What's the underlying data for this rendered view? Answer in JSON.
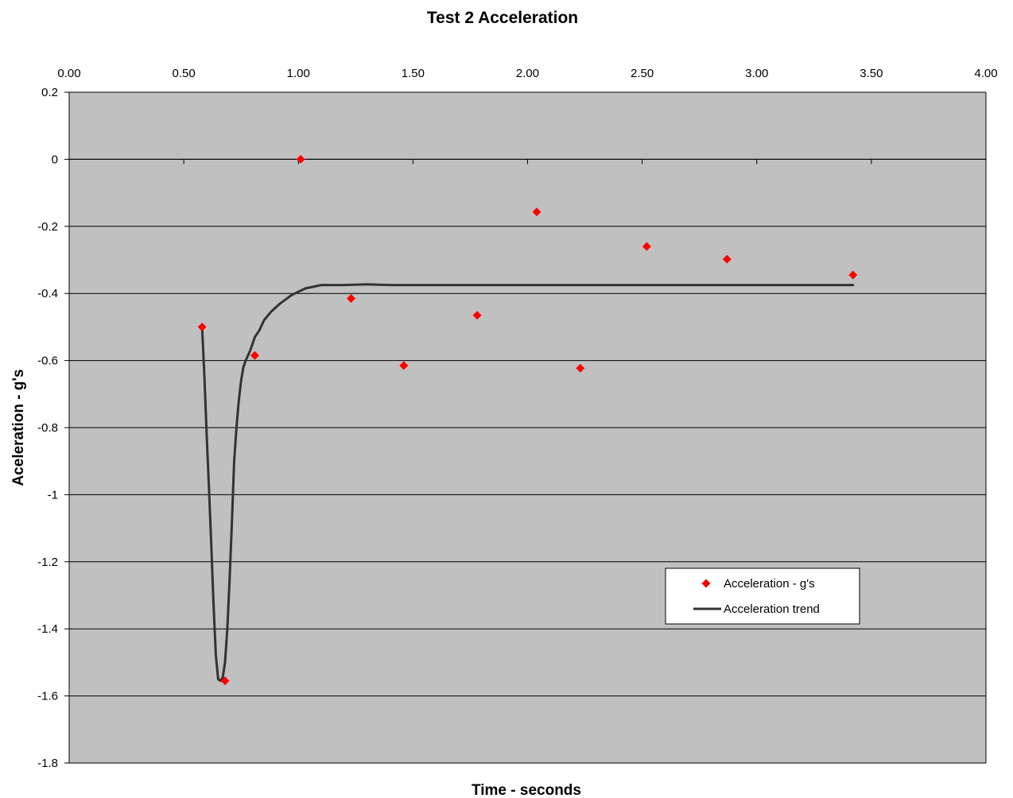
{
  "chart_data": {
    "type": "scatter",
    "title": "Test 2 Acceleration",
    "xlabel": "Time - seconds",
    "ylabel": "Aceleration - g's",
    "xlim": [
      0,
      4
    ],
    "ylim": [
      -1.8,
      0.2
    ],
    "x_ticks": [
      "0.00",
      "0.50",
      "1.00",
      "1.50",
      "2.00",
      "2.50",
      "3.00",
      "3.50",
      "4.00"
    ],
    "y_ticks": [
      "0.2",
      "0",
      "-0.2",
      "-0.4",
      "-0.6",
      "-0.8",
      "-1",
      "-1.2",
      "-1.4",
      "-1.6",
      "-1.8"
    ],
    "x_axis_position": "top",
    "grid": "horizontal",
    "legend_position": "lower-right",
    "plot_background": "#c0c0c0",
    "series": [
      {
        "name": "Acceleration - g's",
        "kind": "markers",
        "marker": "diamond",
        "color": "#ff0000",
        "x": [
          0.58,
          0.68,
          0.81,
          1.01,
          1.23,
          1.46,
          1.78,
          2.04,
          2.23,
          2.52,
          2.87,
          3.42
        ],
        "y": [
          -0.5,
          -1.555,
          -0.585,
          0.0,
          -0.415,
          -0.615,
          -0.465,
          -0.157,
          -0.623,
          -0.26,
          -0.298,
          -0.345
        ]
      },
      {
        "name": "Acceleration trend",
        "kind": "line",
        "color": "#333333",
        "x": [
          0.58,
          0.59,
          0.6,
          0.61,
          0.62,
          0.63,
          0.64,
          0.65,
          0.66,
          0.67,
          0.68,
          0.69,
          0.7,
          0.71,
          0.72,
          0.73,
          0.74,
          0.75,
          0.76,
          0.77,
          0.78,
          0.79,
          0.8,
          0.81,
          0.83,
          0.85,
          0.88,
          0.92,
          0.97,
          1.03,
          1.1,
          1.2,
          1.3,
          1.4,
          1.5,
          2.0,
          2.5,
          3.0,
          3.42
        ],
        "y": [
          -0.5,
          -0.65,
          -0.82,
          -0.98,
          -1.15,
          -1.33,
          -1.48,
          -1.55,
          -1.555,
          -1.545,
          -1.5,
          -1.4,
          -1.25,
          -1.08,
          -0.9,
          -0.8,
          -0.72,
          -0.66,
          -0.62,
          -0.6,
          -0.585,
          -0.57,
          -0.55,
          -0.53,
          -0.51,
          -0.48,
          -0.455,
          -0.43,
          -0.405,
          -0.385,
          -0.375,
          -0.375,
          -0.373,
          -0.375,
          -0.375,
          -0.375,
          -0.375,
          -0.375,
          -0.375
        ]
      }
    ]
  }
}
